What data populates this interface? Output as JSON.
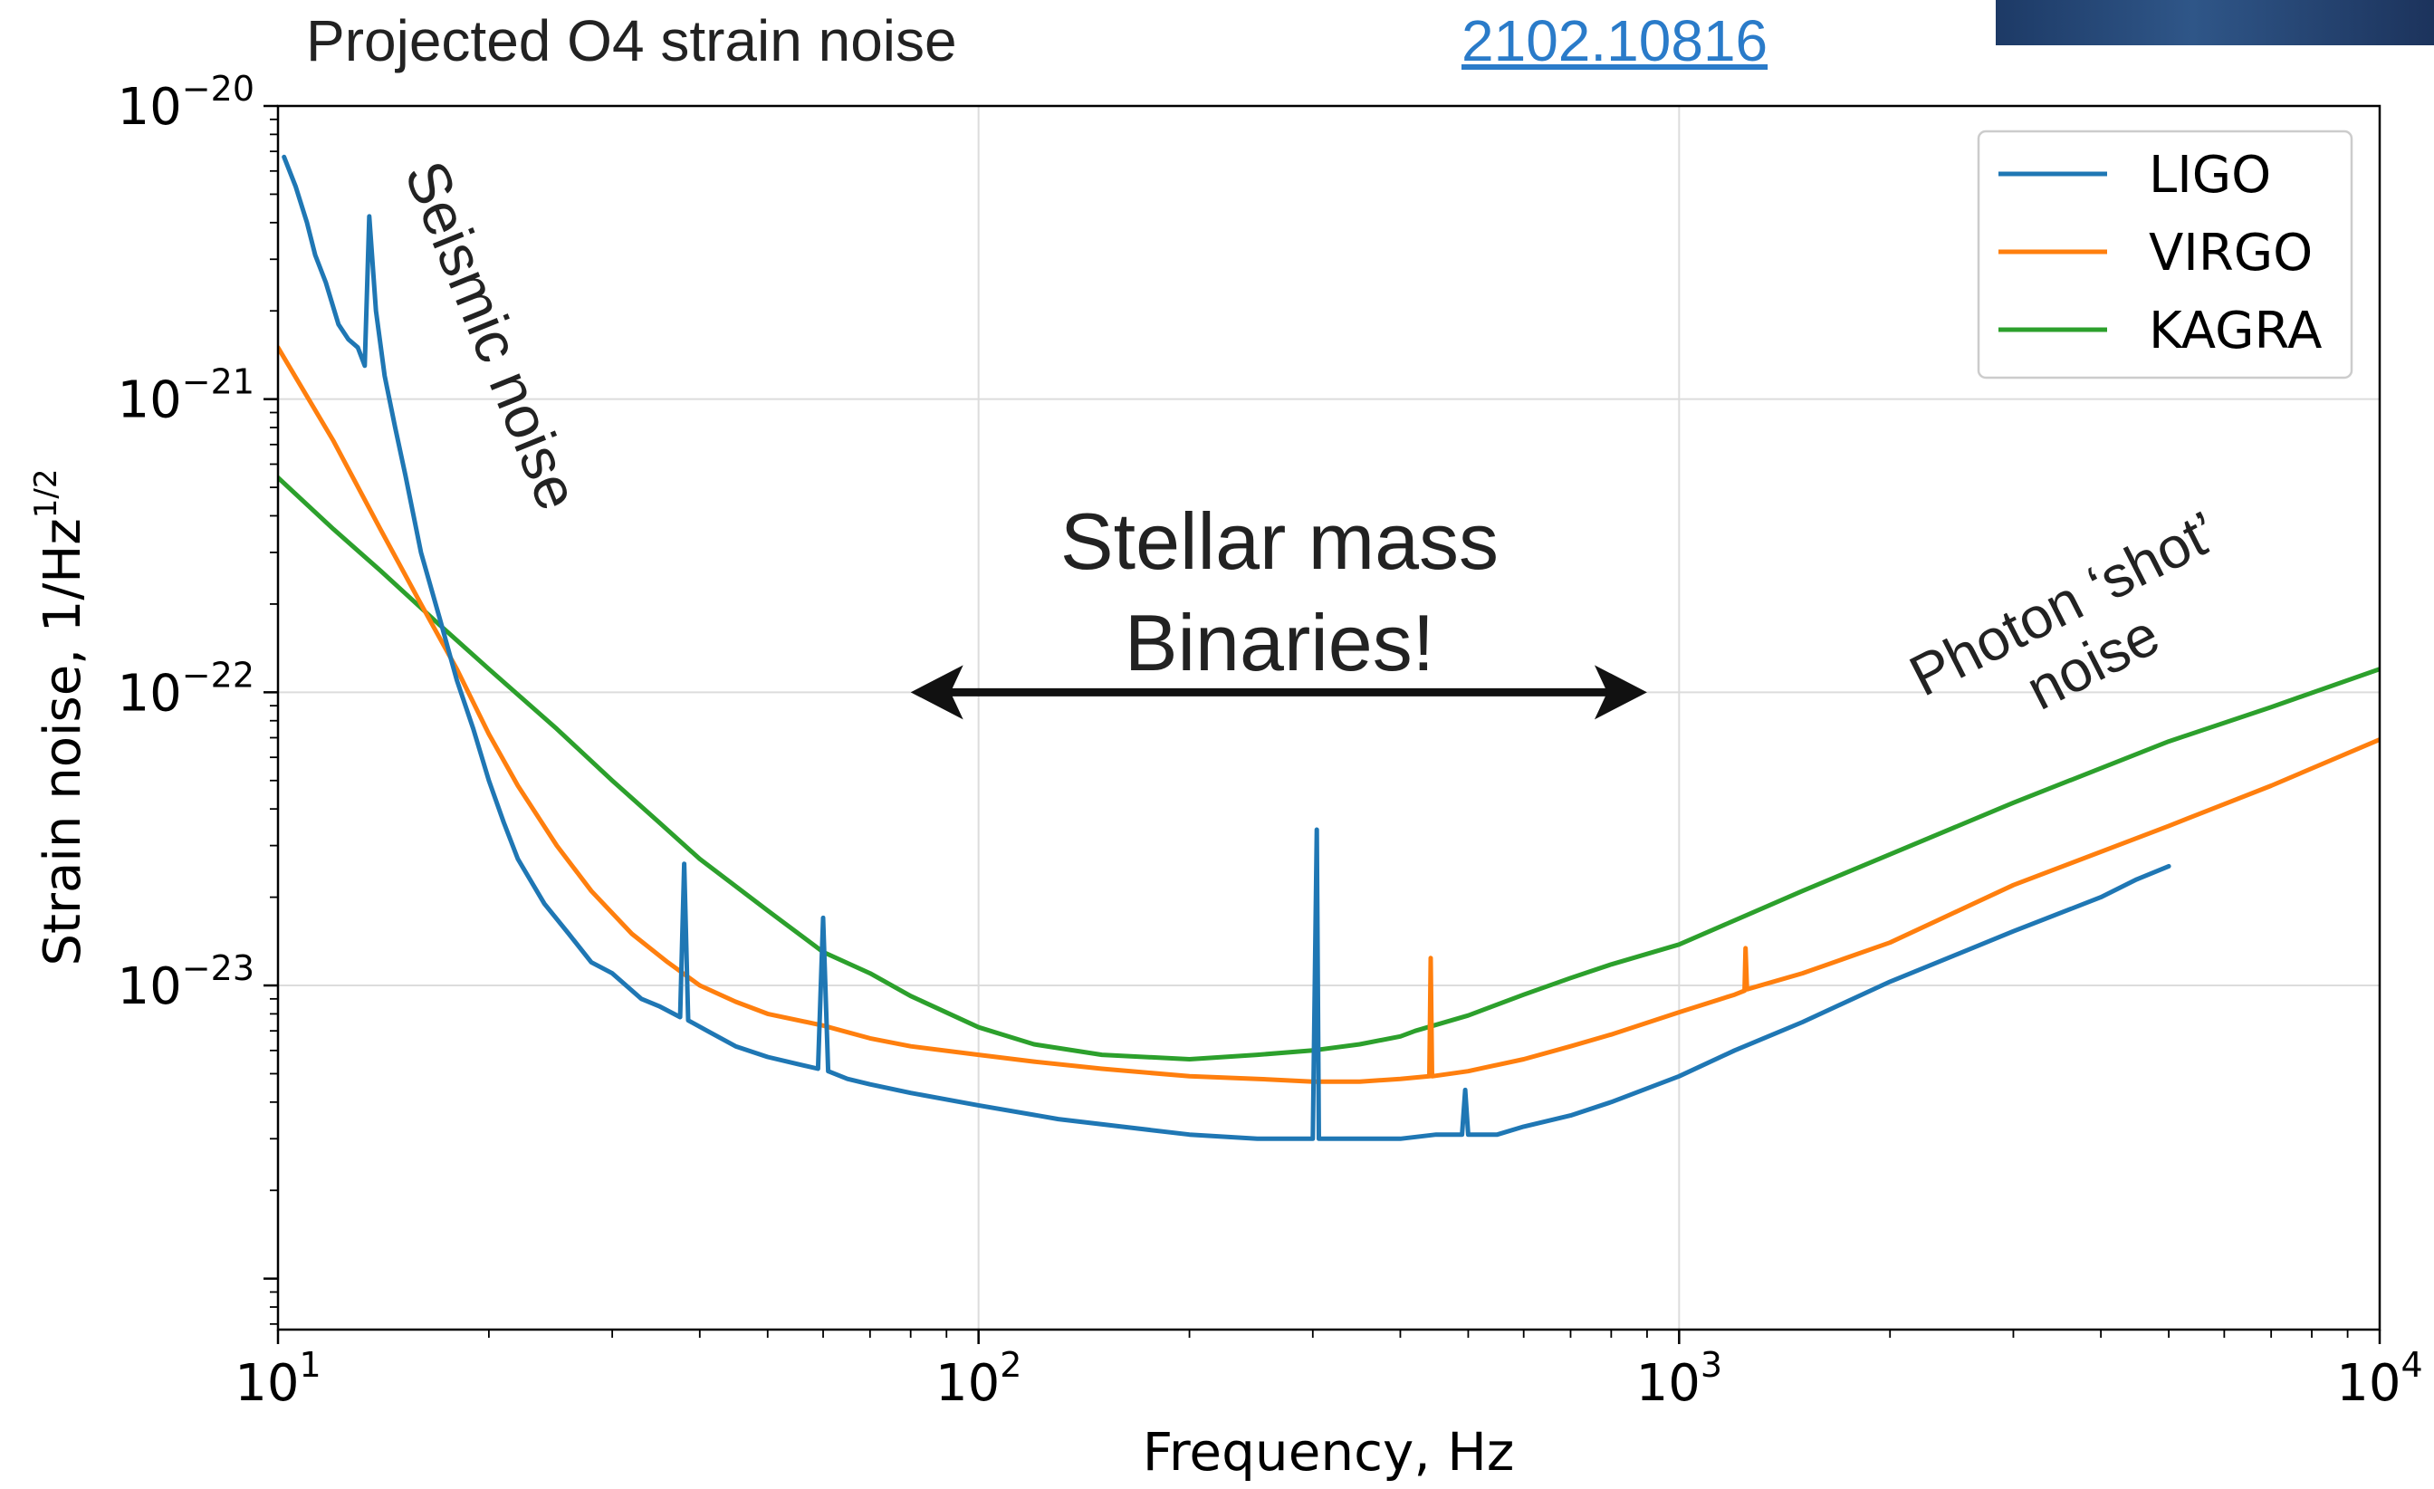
{
  "header": {
    "title": "Projected O4 strain noise",
    "reference": "2102.10816"
  },
  "chart_data": {
    "type": "line",
    "xlabel": "Frequency, Hz",
    "ylabel": "Strain noise, 1/Hz",
    "ylabel_exponent": "1/2",
    "xscale": "log",
    "yscale": "log",
    "xlim": [
      10,
      10000
    ],
    "ylim": [
      6.7e-25,
      1e-20
    ],
    "grid": true,
    "legend_position": "top-right",
    "x_ticks": [
      {
        "value": 10,
        "base": "10",
        "exp": "1"
      },
      {
        "value": 100,
        "base": "10",
        "exp": "2"
      },
      {
        "value": 1000,
        "base": "10",
        "exp": "3"
      },
      {
        "value": 10000,
        "base": "10",
        "exp": "4"
      }
    ],
    "y_ticks": [
      {
        "value": 1e-20,
        "base": "10",
        "exp": "−20"
      },
      {
        "value": 1e-21,
        "base": "10",
        "exp": "−21"
      },
      {
        "value": 1e-22,
        "base": "10",
        "exp": "−22"
      },
      {
        "value": 1e-23,
        "base": "10",
        "exp": "−23"
      }
    ],
    "series": [
      {
        "name": "LIGO",
        "color": "#1f77b4",
        "x": [
          10.2,
          10.6,
          11.0,
          11.3,
          11.7,
          12.2,
          12.6,
          13.0,
          13.3,
          13.5,
          13.8,
          14.2,
          14.7,
          15.2,
          16.0,
          17.0,
          18.0,
          19.0,
          20.0,
          21.0,
          22.0,
          24.0,
          26.0,
          28.0,
          30.0,
          33.0,
          35.0,
          37.5,
          38.0,
          38.5,
          41.0,
          45.0,
          50.0,
          55.0,
          59.0,
          60.0,
          61.0,
          65.0,
          70.0,
          80.0,
          100.0,
          130.0,
          160.0,
          200.0,
          250.0,
          300.0,
          304.0,
          306.0,
          308.0,
          350.0,
          400.0,
          450.0,
          490.0,
          495.0,
          500.0,
          550.0,
          600.0,
          700.0,
          800.0,
          1000.0,
          1200.0,
          1500.0,
          2000.0,
          2500.0,
          3000.0,
          4000.0,
          4500.0,
          5000.0
        ],
        "y": [
          6.7e-21,
          5.3e-21,
          4e-21,
          3.1e-21,
          2.5e-21,
          1.8e-21,
          1.6e-21,
          1.5e-21,
          1.3e-21,
          4.2e-21,
          2e-21,
          1.2e-21,
          8e-22,
          5.5e-22,
          3e-22,
          1.8e-22,
          1.1e-22,
          7.5e-23,
          5e-23,
          3.6e-23,
          2.7e-23,
          1.9e-23,
          1.5e-23,
          1.2e-23,
          1.1e-23,
          9e-24,
          8.5e-24,
          7.8e-24,
          2.6e-23,
          7.6e-24,
          7e-24,
          6.2e-24,
          5.7e-24,
          5.4e-24,
          5.2e-24,
          1.7e-23,
          5.1e-24,
          4.8e-24,
          4.6e-24,
          4.3e-24,
          3.9e-24,
          3.5e-24,
          3.3e-24,
          3.1e-24,
          3e-24,
          3e-24,
          3.4e-23,
          3e-24,
          3e-24,
          3e-24,
          3e-24,
          3.1e-24,
          3.1e-24,
          4.4e-24,
          3.1e-24,
          3.1e-24,
          3.3e-24,
          3.6e-24,
          4e-24,
          4.9e-24,
          6e-24,
          7.5e-24,
          1.03e-23,
          1.28e-23,
          1.53e-23,
          2e-23,
          2.3e-23,
          2.55e-23
        ]
      },
      {
        "name": "VIRGO",
        "color": "#ff7f0e",
        "x": [
          10.0,
          12.0,
          14.0,
          16.0,
          18.0,
          20.0,
          22.0,
          25.0,
          28.0,
          32.0,
          36.0,
          40.0,
          45.0,
          50.0,
          60.0,
          70.0,
          80.0,
          100.0,
          120.0,
          150.0,
          200.0,
          250.0,
          300.0,
          350.0,
          400.0,
          440.0,
          442.0,
          444.0,
          500.0,
          600.0,
          700.0,
          800.0,
          1000.0,
          1200.0,
          1240.0,
          1244.0,
          1250.0,
          1500.0,
          2000.0,
          3000.0,
          5000.0,
          7000.0,
          10000.0
        ],
        "y": [
          1.5e-21,
          7.2e-22,
          3.6e-22,
          2e-22,
          1.2e-22,
          7.2e-23,
          4.8e-23,
          3e-23,
          2.1e-23,
          1.5e-23,
          1.2e-23,
          1e-23,
          8.8e-24,
          8e-24,
          7.3e-24,
          6.6e-24,
          6.2e-24,
          5.8e-24,
          5.5e-24,
          5.2e-24,
          4.9e-24,
          4.8e-24,
          4.7e-24,
          4.7e-24,
          4.8e-24,
          4.9e-24,
          1.24e-23,
          4.9e-24,
          5.1e-24,
          5.6e-24,
          6.2e-24,
          6.8e-24,
          8.1e-24,
          9.3e-24,
          9.6e-24,
          1.34e-23,
          9.7e-24,
          1.1e-23,
          1.4e-23,
          2.2e-23,
          3.5e-23,
          4.8e-23,
          6.9e-23
        ]
      },
      {
        "name": "KAGRA",
        "color": "#2ca02c",
        "x": [
          10.0,
          12.0,
          14.0,
          17.0,
          20.0,
          25.0,
          30.0,
          35.0,
          40.0,
          50.0,
          60.0,
          70.0,
          80.0,
          100.0,
          120.0,
          150.0,
          200.0,
          250.0,
          300.0,
          350.0,
          400.0,
          420.0,
          500.0,
          600.0,
          700.0,
          800.0,
          1000.0,
          1500.0,
          2000.0,
          3000.0,
          5000.0,
          7000.0,
          10000.0
        ],
        "y": [
          5.4e-22,
          3.6e-22,
          2.6e-22,
          1.7e-22,
          1.2e-22,
          7.5e-23,
          5e-23,
          3.6e-23,
          2.7e-23,
          1.8e-23,
          1.3e-23,
          1.1e-23,
          9.2e-24,
          7.2e-24,
          6.3e-24,
          5.8e-24,
          5.6e-24,
          5.8e-24,
          6e-24,
          6.3e-24,
          6.7e-24,
          7e-24,
          7.9e-24,
          9.3e-24,
          1.06e-23,
          1.18e-23,
          1.38e-23,
          2.1e-23,
          2.8e-23,
          4.2e-23,
          6.8e-23,
          8.9e-23,
          1.2e-22
        ]
      }
    ],
    "annotations": {
      "seismic": "Seismic noise",
      "stellar_line1": "Stellar mass",
      "stellar_line2": "Binaries!",
      "shot_line1": "Photon ‘shot’",
      "shot_line2": "noise"
    },
    "band_arrow": {
      "x_start": 80,
      "x_end": 900,
      "y": 1e-22
    }
  },
  "colors": {
    "axis": "#000000",
    "grid": "#dcdcdc",
    "annotation_text": "#222222",
    "link": "#2a7bc9"
  }
}
